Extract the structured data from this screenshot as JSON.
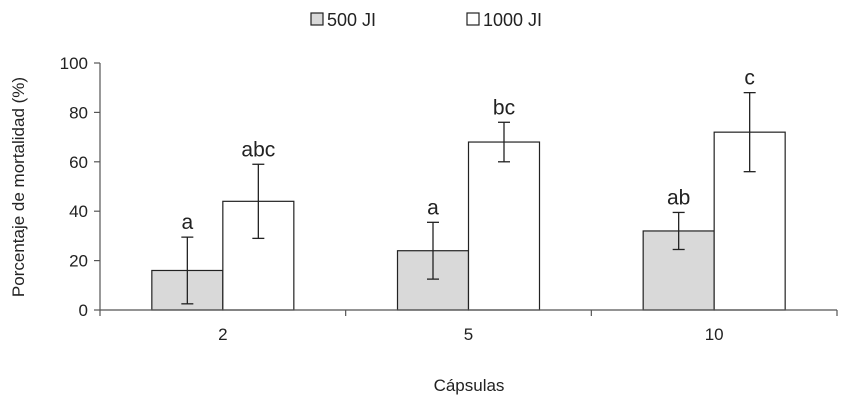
{
  "chart_data": {
    "type": "bar",
    "title": "",
    "xlabel": "Cápsulas",
    "ylabel": "Porcentaje de mortalidad (%)",
    "categories": [
      "2",
      "5",
      "10"
    ],
    "ylim": [
      0,
      100
    ],
    "yticks": [
      0,
      20,
      40,
      60,
      80,
      100
    ],
    "grid": false,
    "legend_position": "top",
    "series": [
      {
        "name": "500 JI",
        "color": "#d9d9d9",
        "values": [
          16,
          24,
          32
        ],
        "error_low": [
          2.5,
          12.5,
          24.5
        ],
        "error_high": [
          29.5,
          35.5,
          39.5
        ],
        "labels": [
          "a",
          "a",
          "ab"
        ]
      },
      {
        "name": "1000 JI",
        "color": "#ffffff",
        "values": [
          44,
          68,
          72
        ],
        "error_low": [
          29,
          60,
          56
        ],
        "error_high": [
          59,
          76,
          88
        ],
        "labels": [
          "abc",
          "bc",
          "c"
        ]
      }
    ]
  }
}
